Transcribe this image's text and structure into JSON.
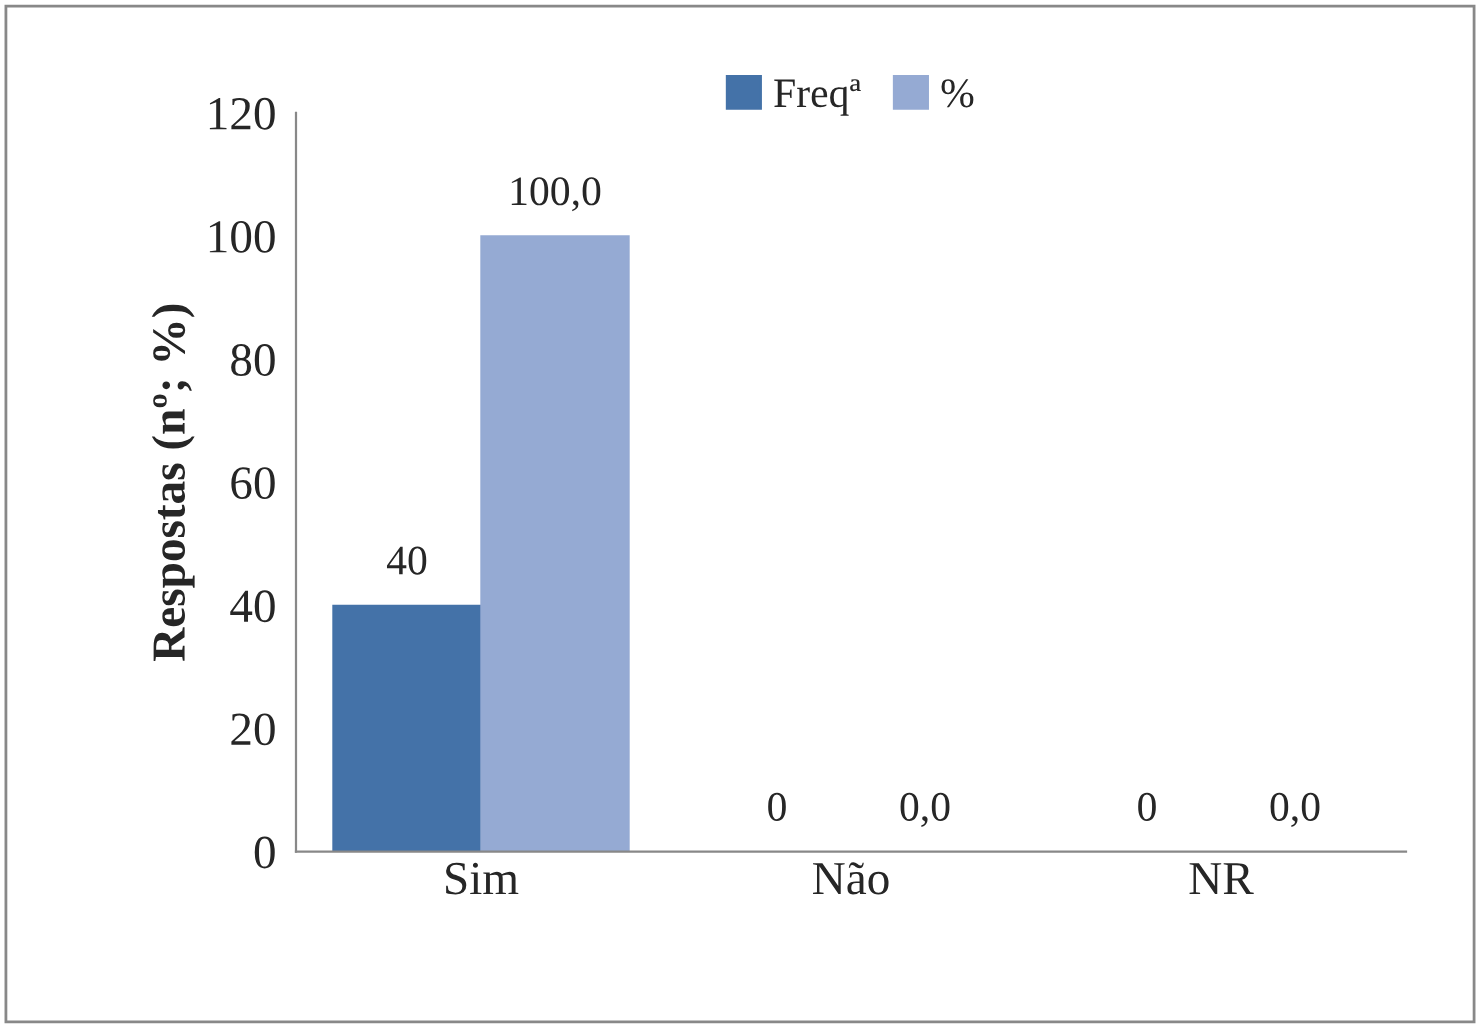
{
  "chart_data": {
    "type": "bar",
    "ylabel": "Respostas (nº; %)",
    "categories": [
      "Sim",
      "Não",
      "NR"
    ],
    "series": [
      {
        "name": "Freqª",
        "color": "#4472a8",
        "values": [
          40,
          0,
          0
        ],
        "value_labels": [
          "40",
          "0",
          "0"
        ]
      },
      {
        "name": "%",
        "color": "#95aad3",
        "values": [
          100,
          0,
          0
        ],
        "value_labels": [
          "100,0",
          "0,0",
          "0,0"
        ]
      }
    ],
    "ylim": [
      0,
      120
    ],
    "yticks": [
      0,
      20,
      40,
      60,
      80,
      100,
      120
    ],
    "grid": false,
    "legend": "top"
  }
}
